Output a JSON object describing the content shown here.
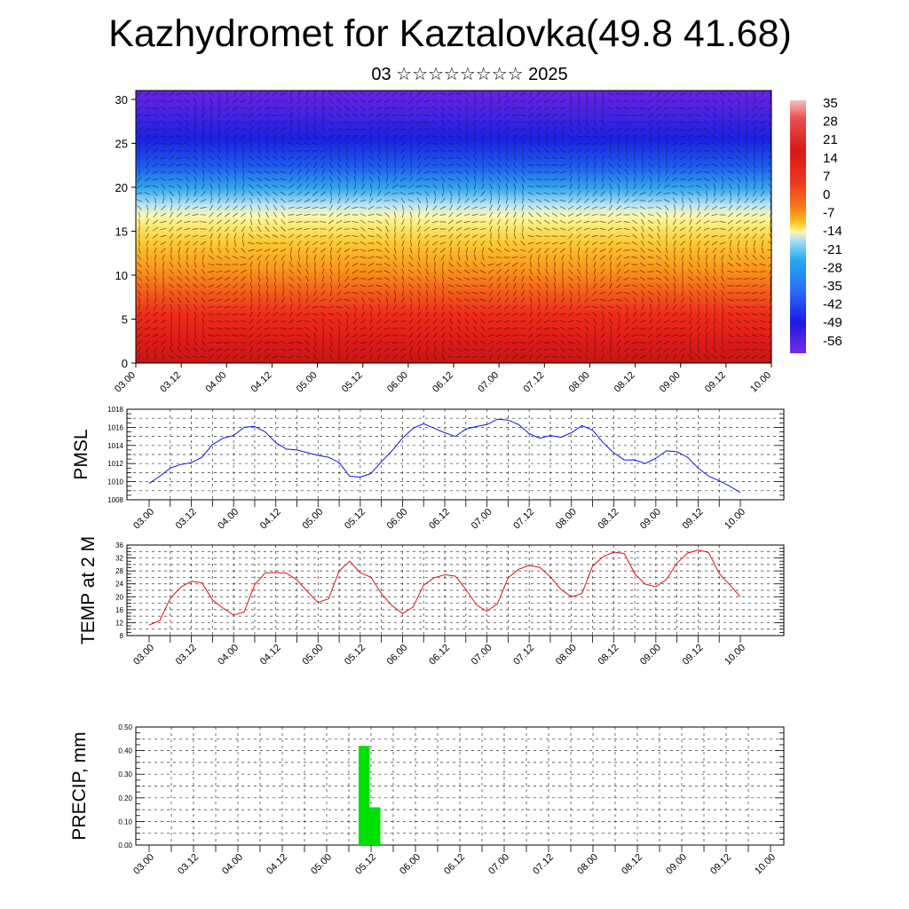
{
  "header": {
    "title": "Kazhydromet for Kaztalovka(49.8 41.68)",
    "subtitle": "03 ☆☆☆☆☆☆☆☆ 2025"
  },
  "chart_data": [
    {
      "type": "heatmap",
      "title": "",
      "xlabel": "",
      "ylabel": "",
      "x_ticks": [
        "03.00",
        "03.12",
        "04.00",
        "04.12",
        "05.00",
        "05.12",
        "06.00",
        "06.12",
        "07.00",
        "07.12",
        "08.00",
        "08.12",
        "09.00",
        "09.12",
        "10.00"
      ],
      "y_ticks": [
        0,
        5,
        10,
        15,
        20,
        25,
        30
      ],
      "ylim": [
        0,
        31
      ],
      "colorbar_labels": [
        "35",
        "28",
        "21",
        "14",
        "7",
        "0",
        "-7",
        "-14",
        "-21",
        "-28",
        "-35",
        "-42",
        "-49",
        "-56"
      ],
      "overlay": "wind vectors",
      "colors": [
        "#6a1fe0",
        "#1a1ae6",
        "#2a6ef5",
        "#29a8f0",
        "#8fd8f5",
        "#fff7a8",
        "#fde04a",
        "#fcb01e",
        "#f7781a",
        "#f03a1e",
        "#d81818",
        "#e85050",
        "#f6a8a8"
      ]
    },
    {
      "type": "line",
      "ylabel": "PMSL",
      "ylim": [
        1008,
        1018
      ],
      "y_ticks": [
        1008,
        1010,
        1012,
        1014,
        1016,
        1018
      ],
      "x_ticks": [
        "03.00",
        "03.12",
        "04.00",
        "04.12",
        "05.00",
        "05.12",
        "06.00",
        "06.12",
        "07.00",
        "07.12",
        "08.00",
        "08.12",
        "09.00",
        "09.12",
        "10.00"
      ],
      "line_color": "#1010e0",
      "values": [
        1009.8,
        1010.6,
        1011.5,
        1011.9,
        1012.1,
        1012.7,
        1014.1,
        1014.8,
        1015.1,
        1016.0,
        1016.1,
        1015.5,
        1014.3,
        1013.6,
        1013.5,
        1013.2,
        1012.9,
        1012.7,
        1012.1,
        1010.6,
        1010.5,
        1010.9,
        1012.2,
        1013.4,
        1014.8,
        1015.9,
        1016.4,
        1015.9,
        1015.4,
        1015.0,
        1015.8,
        1016.1,
        1016.3,
        1016.9,
        1016.8,
        1016.3,
        1015.3,
        1014.8,
        1015.1,
        1014.9,
        1015.4,
        1016.2,
        1015.7,
        1014.3,
        1013.2,
        1012.4,
        1012.4,
        1012.0,
        1012.6,
        1013.4,
        1013.3,
        1012.7,
        1011.5,
        1010.6,
        1010.1,
        1009.5,
        1008.8
      ]
    },
    {
      "type": "line",
      "ylabel": "TEMP at 2 M",
      "ylim": [
        8,
        36
      ],
      "y_ticks": [
        8,
        12,
        16,
        20,
        24,
        28,
        32,
        36
      ],
      "x_ticks": [
        "03.00",
        "03.12",
        "04.00",
        "04.12",
        "05.00",
        "05.12",
        "06.00",
        "06.12",
        "07.00",
        "07.12",
        "08.00",
        "08.12",
        "09.00",
        "09.12",
        "10.00"
      ],
      "line_color": "#e01010",
      "values": [
        11.3,
        12.6,
        19.5,
        23.0,
        24.8,
        24.3,
        19.0,
        16.5,
        14.3,
        15.3,
        23.7,
        27.4,
        27.5,
        27.3,
        25.2,
        21.6,
        18.2,
        19.4,
        28.0,
        31.0,
        27.4,
        26.1,
        21.0,
        17.3,
        14.8,
        16.8,
        23.6,
        25.9,
        26.8,
        26.4,
        22.3,
        17.5,
        15.5,
        17.9,
        25.9,
        28.5,
        29.7,
        29.1,
        26.2,
        22.3,
        20.0,
        21.0,
        29.5,
        32.4,
        33.8,
        33.4,
        27.1,
        23.9,
        23.1,
        25.4,
        30.4,
        33.5,
        34.5,
        33.7,
        27.2,
        23.7,
        20.0
      ]
    },
    {
      "type": "bar",
      "ylabel": "PRECIP, mm",
      "ylim": [
        0.0,
        0.5
      ],
      "y_ticks": [
        "0.00",
        "0.10",
        "0.20",
        "0.30",
        "0.40",
        "0.50"
      ],
      "x_ticks": [
        "03.00",
        "03.12",
        "04.00",
        "04.12",
        "05.00",
        "05.12",
        "06.00",
        "06.12",
        "07.00",
        "07.12",
        "08.00",
        "08.12",
        "09.00",
        "09.12",
        "10.00"
      ],
      "bar_color": "#00e000",
      "bars": [
        {
          "x_index": 19.5,
          "value": 0.42
        },
        {
          "x_index": 20.5,
          "value": 0.16
        }
      ]
    }
  ]
}
